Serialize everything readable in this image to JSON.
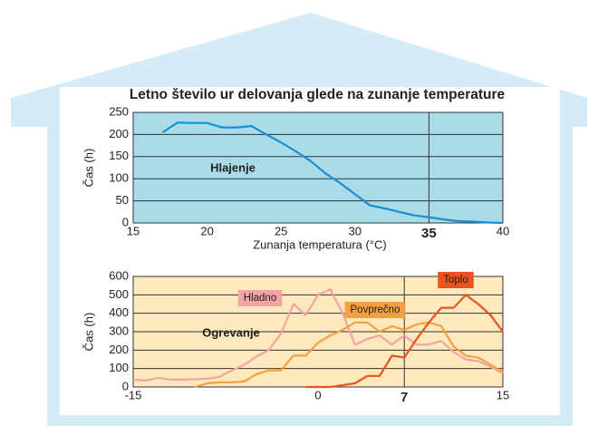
{
  "chart_data": [
    {
      "type": "line",
      "title": "Letno število ur delovanja glede na zunanje temperature",
      "ylabel": "Čas (h)",
      "xlabel": "Zunanja temperatura (°C)",
      "x": [
        17,
        18,
        19,
        20,
        21,
        22,
        23,
        24,
        25,
        26,
        27,
        28,
        29,
        30,
        31,
        32,
        33,
        34,
        35,
        36,
        37,
        38,
        39,
        40
      ],
      "series": [
        {
          "name": "Hlajenje",
          "color": "#1a8fd2",
          "values": [
            205,
            227,
            226,
            226,
            216,
            216,
            219,
            200,
            182,
            162,
            140,
            112,
            90,
            65,
            40,
            33,
            25,
            17,
            13,
            8,
            4,
            3,
            1,
            0
          ]
        }
      ],
      "xlim": [
        15,
        40
      ],
      "xticks": [
        15,
        20,
        25,
        30,
        35,
        40
      ],
      "ylim": [
        0,
        250
      ],
      "yticks": [
        0,
        50,
        100,
        150,
        200,
        250
      ],
      "marker_x": 35,
      "grid": true,
      "plot_bg": "#a9dce8"
    },
    {
      "type": "line",
      "ylabel": "Čas (h)",
      "x": [
        -15,
        -14,
        -13,
        -12,
        -11,
        -10,
        -9,
        -8,
        -7,
        -6,
        -5,
        -4,
        -3,
        -2,
        -1,
        0,
        1,
        2,
        3,
        4,
        5,
        6,
        7,
        8,
        9,
        10,
        11,
        12,
        13,
        14,
        15
      ],
      "series": [
        {
          "name": "Hladno",
          "color": "#f4a3a3",
          "values": [
            40,
            35,
            50,
            40,
            40,
            42,
            45,
            55,
            90,
            120,
            165,
            200,
            290,
            450,
            390,
            500,
            530,
            400,
            230,
            260,
            280,
            230,
            280,
            230,
            230,
            250,
            190,
            150,
            140,
            110,
            75
          ]
        },
        {
          "name": "Povprečno",
          "color": "#f5a040",
          "values": [
            null,
            null,
            null,
            null,
            null,
            0,
            20,
            25,
            25,
            30,
            70,
            90,
            90,
            170,
            170,
            240,
            280,
            310,
            350,
            350,
            300,
            330,
            310,
            340,
            350,
            330,
            220,
            170,
            160,
            120,
            80
          ]
        },
        {
          "name": "Toplo",
          "color": "#e8541e",
          "values": [
            null,
            null,
            null,
            null,
            null,
            null,
            null,
            null,
            null,
            null,
            null,
            null,
            null,
            null,
            0,
            0,
            0,
            10,
            20,
            60,
            60,
            170,
            160,
            260,
            350,
            430,
            430,
            500,
            450,
            390,
            300
          ]
        }
      ],
      "annotation": "Ogrevanje",
      "xlim": [
        -15,
        15
      ],
      "xticks": [
        -15,
        0,
        7,
        15
      ],
      "ylim": [
        0,
        600
      ],
      "yticks": [
        0,
        100,
        200,
        300,
        400,
        500,
        600
      ],
      "marker_x": 7,
      "grid": true,
      "plot_bg": "#fde9bd"
    }
  ]
}
